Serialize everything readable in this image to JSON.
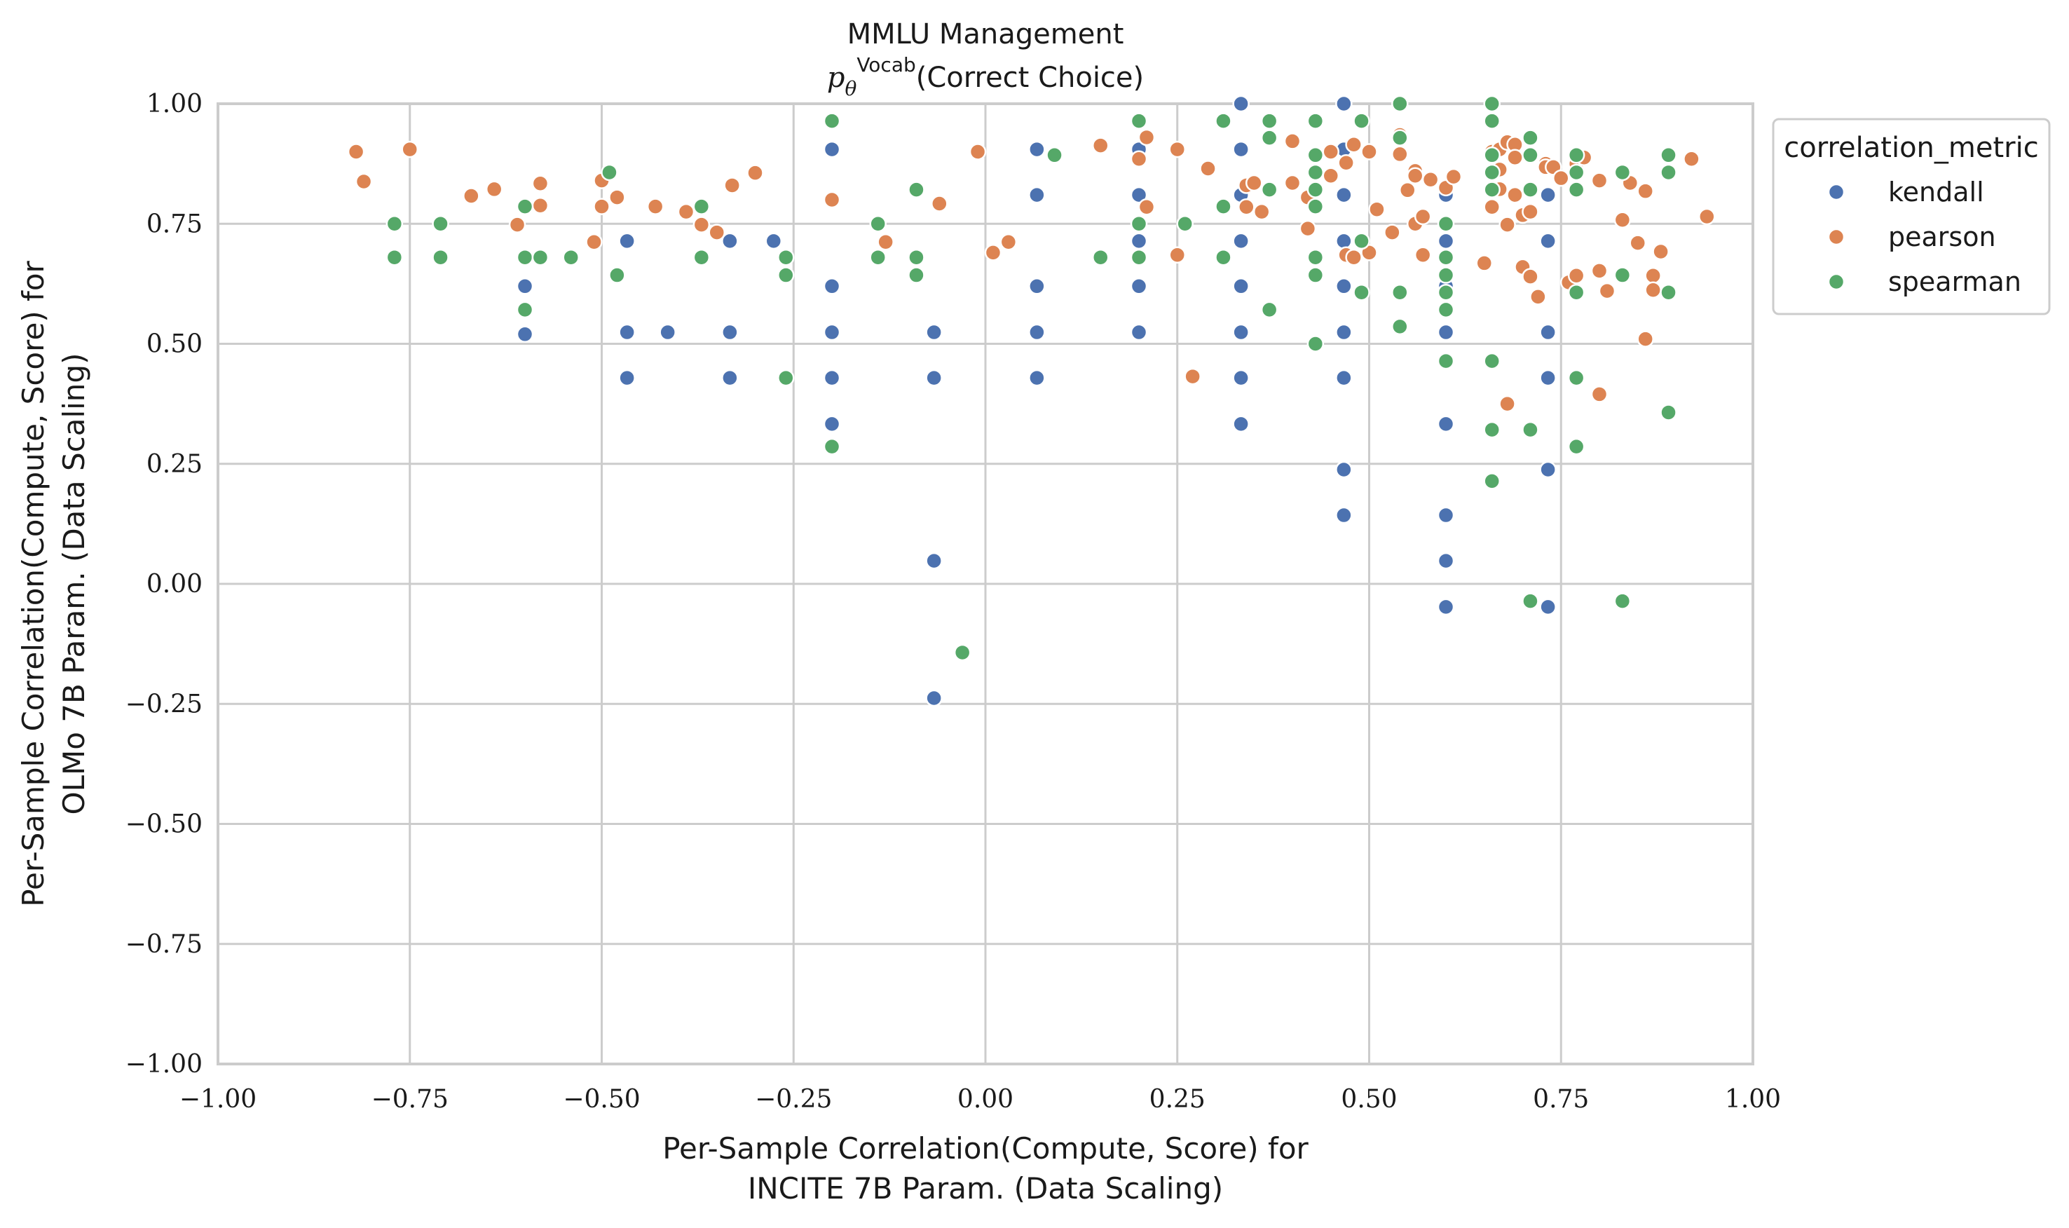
{
  "chart_data": {
    "type": "scatter",
    "title": "MMLU Management",
    "subtitle_math": "p",
    "subtitle_math_sub": "θ",
    "subtitle_sup": "Vocab",
    "subtitle_text": "(Correct Choice)",
    "xlabel_lines": [
      "Per-Sample Correlation(Compute, Score) for",
      "INCITE 7B Param. (Data Scaling)"
    ],
    "ylabel_lines": [
      "Per-Sample Correlation(Compute, Score) for",
      "OLMo 7B Param. (Data Scaling)"
    ],
    "xlim": [
      -1.0,
      1.0
    ],
    "ylim": [
      -1.0,
      1.0
    ],
    "xticks": [
      -1.0,
      -0.75,
      -0.5,
      -0.25,
      0.0,
      0.25,
      0.5,
      0.75,
      1.0
    ],
    "yticks": [
      -1.0,
      -0.75,
      -0.5,
      -0.25,
      0.0,
      0.25,
      0.5,
      0.75,
      1.0
    ],
    "xtick_labels": [
      "−1.00",
      "−0.75",
      "−0.50",
      "−0.25",
      "0.00",
      "0.25",
      "0.50",
      "0.75",
      "1.00"
    ],
    "ytick_labels": [
      "−1.00",
      "−0.75",
      "−0.50",
      "−0.25",
      "0.00",
      "0.25",
      "0.50",
      "0.75",
      "1.00"
    ],
    "grid": true,
    "legend": {
      "title": "correlation_metric",
      "placement": "outside-right-top"
    },
    "series": [
      {
        "name": "kendall",
        "color": "#4c72b0",
        "points": [
          [
            -0.6,
            0.62
          ],
          [
            -0.6,
            0.52
          ],
          [
            -0.467,
            0.714
          ],
          [
            -0.467,
            0.524
          ],
          [
            -0.467,
            0.429
          ],
          [
            -0.414,
            0.524
          ],
          [
            -0.333,
            0.714
          ],
          [
            -0.333,
            0.524
          ],
          [
            -0.333,
            0.429
          ],
          [
            -0.276,
            0.714
          ],
          [
            -0.2,
            0.905
          ],
          [
            -0.2,
            0.62
          ],
          [
            -0.2,
            0.524
          ],
          [
            -0.2,
            0.429
          ],
          [
            -0.2,
            0.333
          ],
          [
            -0.067,
            0.524
          ],
          [
            -0.067,
            0.429
          ],
          [
            -0.067,
            0.048
          ],
          [
            -0.067,
            -0.238
          ],
          [
            0.067,
            0.905
          ],
          [
            0.067,
            0.81
          ],
          [
            0.067,
            0.62
          ],
          [
            0.067,
            0.524
          ],
          [
            0.067,
            0.429
          ],
          [
            0.2,
            0.905
          ],
          [
            0.2,
            0.81
          ],
          [
            0.2,
            0.714
          ],
          [
            0.2,
            0.62
          ],
          [
            0.2,
            0.524
          ],
          [
            0.333,
            1.0
          ],
          [
            0.333,
            0.905
          ],
          [
            0.333,
            0.81
          ],
          [
            0.333,
            0.714
          ],
          [
            0.333,
            0.62
          ],
          [
            0.333,
            0.524
          ],
          [
            0.333,
            0.429
          ],
          [
            0.333,
            0.333
          ],
          [
            0.467,
            1.0
          ],
          [
            0.467,
            0.905
          ],
          [
            0.467,
            0.81
          ],
          [
            0.467,
            0.714
          ],
          [
            0.467,
            0.62
          ],
          [
            0.467,
            0.524
          ],
          [
            0.467,
            0.429
          ],
          [
            0.467,
            0.238
          ],
          [
            0.467,
            0.143
          ],
          [
            0.6,
            0.81
          ],
          [
            0.6,
            0.714
          ],
          [
            0.6,
            0.62
          ],
          [
            0.6,
            0.524
          ],
          [
            0.6,
            0.333
          ],
          [
            0.6,
            0.143
          ],
          [
            0.6,
            0.048
          ],
          [
            0.6,
            -0.048
          ],
          [
            0.733,
            0.81
          ],
          [
            0.733,
            0.714
          ],
          [
            0.733,
            0.524
          ],
          [
            0.733,
            0.429
          ],
          [
            0.733,
            0.238
          ],
          [
            0.733,
            -0.048
          ]
        ]
      },
      {
        "name": "pearson",
        "color": "#dd8452",
        "points": [
          [
            -0.82,
            0.9
          ],
          [
            -0.81,
            0.838
          ],
          [
            -0.75,
            0.905
          ],
          [
            -0.67,
            0.808
          ],
          [
            -0.64,
            0.822
          ],
          [
            -0.61,
            0.748
          ],
          [
            -0.58,
            0.834
          ],
          [
            -0.58,
            0.788
          ],
          [
            -0.51,
            0.712
          ],
          [
            -0.5,
            0.84
          ],
          [
            -0.5,
            0.786
          ],
          [
            -0.48,
            0.805
          ],
          [
            -0.43,
            0.786
          ],
          [
            -0.39,
            0.775
          ],
          [
            -0.37,
            0.748
          ],
          [
            -0.35,
            0.732
          ],
          [
            -0.33,
            0.83
          ],
          [
            -0.3,
            0.856
          ],
          [
            -0.2,
            0.8
          ],
          [
            -0.13,
            0.712
          ],
          [
            -0.06,
            0.792
          ],
          [
            -0.01,
            0.9
          ],
          [
            0.01,
            0.69
          ],
          [
            0.03,
            0.712
          ],
          [
            0.15,
            0.913
          ],
          [
            0.2,
            0.885
          ],
          [
            0.21,
            0.93
          ],
          [
            0.21,
            0.785
          ],
          [
            0.25,
            0.905
          ],
          [
            0.25,
            0.685
          ],
          [
            0.27,
            0.432
          ],
          [
            0.29,
            0.865
          ],
          [
            0.34,
            0.83
          ],
          [
            0.34,
            0.785
          ],
          [
            0.35,
            0.835
          ],
          [
            0.36,
            0.775
          ],
          [
            0.4,
            0.835
          ],
          [
            0.4,
            0.922
          ],
          [
            0.42,
            0.805
          ],
          [
            0.42,
            0.74
          ],
          [
            0.45,
            0.9
          ],
          [
            0.45,
            0.85
          ],
          [
            0.47,
            0.877
          ],
          [
            0.47,
            0.685
          ],
          [
            0.48,
            0.915
          ],
          [
            0.48,
            0.68
          ],
          [
            0.5,
            0.69
          ],
          [
            0.5,
            0.9
          ],
          [
            0.51,
            0.78
          ],
          [
            0.53,
            0.732
          ],
          [
            0.54,
            0.935
          ],
          [
            0.54,
            0.895
          ],
          [
            0.55,
            0.82
          ],
          [
            0.56,
            0.86
          ],
          [
            0.56,
            0.85
          ],
          [
            0.56,
            0.75
          ],
          [
            0.57,
            0.765
          ],
          [
            0.57,
            0.685
          ],
          [
            0.58,
            0.842
          ],
          [
            0.6,
            0.825
          ],
          [
            0.61,
            0.848
          ],
          [
            0.65,
            0.668
          ],
          [
            0.66,
            0.9
          ],
          [
            0.66,
            0.785
          ],
          [
            0.67,
            0.905
          ],
          [
            0.67,
            0.863
          ],
          [
            0.67,
            0.822
          ],
          [
            0.68,
            0.92
          ],
          [
            0.68,
            0.748
          ],
          [
            0.68,
            0.375
          ],
          [
            0.69,
            0.81
          ],
          [
            0.69,
            0.915
          ],
          [
            0.69,
            0.888
          ],
          [
            0.7,
            0.768
          ],
          [
            0.7,
            0.66
          ],
          [
            0.71,
            0.775
          ],
          [
            0.71,
            0.64
          ],
          [
            0.72,
            0.598
          ],
          [
            0.73,
            0.875
          ],
          [
            0.73,
            0.868
          ],
          [
            0.74,
            0.868
          ],
          [
            0.75,
            0.845
          ],
          [
            0.76,
            0.628
          ],
          [
            0.77,
            0.875
          ],
          [
            0.77,
            0.642
          ],
          [
            0.78,
            0.888
          ],
          [
            0.8,
            0.84
          ],
          [
            0.8,
            0.652
          ],
          [
            0.8,
            0.395
          ],
          [
            0.81,
            0.61
          ],
          [
            0.83,
            0.758
          ],
          [
            0.84,
            0.835
          ],
          [
            0.85,
            0.71
          ],
          [
            0.86,
            0.818
          ],
          [
            0.86,
            0.51
          ],
          [
            0.87,
            0.642
          ],
          [
            0.87,
            0.612
          ],
          [
            0.88,
            0.692
          ],
          [
            0.92,
            0.885
          ],
          [
            0.94,
            0.765
          ]
        ]
      },
      {
        "name": "spearman",
        "color": "#55a868",
        "points": [
          [
            -0.77,
            0.75
          ],
          [
            -0.77,
            0.68
          ],
          [
            -0.71,
            0.75
          ],
          [
            -0.71,
            0.68
          ],
          [
            -0.6,
            0.786
          ],
          [
            -0.6,
            0.68
          ],
          [
            -0.6,
            0.571
          ],
          [
            -0.58,
            0.68
          ],
          [
            -0.54,
            0.68
          ],
          [
            -0.49,
            0.857
          ],
          [
            -0.48,
            0.643
          ],
          [
            -0.37,
            0.786
          ],
          [
            -0.37,
            0.68
          ],
          [
            -0.26,
            0.68
          ],
          [
            -0.26,
            0.643
          ],
          [
            -0.26,
            0.429
          ],
          [
            -0.2,
            0.964
          ],
          [
            -0.2,
            0.286
          ],
          [
            -0.14,
            0.75
          ],
          [
            -0.14,
            0.68
          ],
          [
            -0.09,
            0.821
          ],
          [
            -0.09,
            0.68
          ],
          [
            -0.09,
            0.643
          ],
          [
            -0.03,
            -0.143
          ],
          [
            0.09,
            0.893
          ],
          [
            0.15,
            0.68
          ],
          [
            0.2,
            0.964
          ],
          [
            0.2,
            0.75
          ],
          [
            0.2,
            0.68
          ],
          [
            0.26,
            0.75
          ],
          [
            0.31,
            0.964
          ],
          [
            0.31,
            0.786
          ],
          [
            0.31,
            0.68
          ],
          [
            0.37,
            0.964
          ],
          [
            0.37,
            0.929
          ],
          [
            0.37,
            0.821
          ],
          [
            0.37,
            0.571
          ],
          [
            0.43,
            0.964
          ],
          [
            0.43,
            0.893
          ],
          [
            0.43,
            0.857
          ],
          [
            0.43,
            0.821
          ],
          [
            0.43,
            0.786
          ],
          [
            0.43,
            0.68
          ],
          [
            0.43,
            0.643
          ],
          [
            0.43,
            0.5
          ],
          [
            0.49,
            0.964
          ],
          [
            0.49,
            0.714
          ],
          [
            0.49,
            0.607
          ],
          [
            0.54,
            1.0
          ],
          [
            0.54,
            0.929
          ],
          [
            0.54,
            0.607
          ],
          [
            0.54,
            0.536
          ],
          [
            0.6,
            0.75
          ],
          [
            0.6,
            0.68
          ],
          [
            0.6,
            0.643
          ],
          [
            0.6,
            0.607
          ],
          [
            0.6,
            0.571
          ],
          [
            0.6,
            0.464
          ],
          [
            0.66,
            1.0
          ],
          [
            0.66,
            0.964
          ],
          [
            0.66,
            0.893
          ],
          [
            0.66,
            0.857
          ],
          [
            0.66,
            0.821
          ],
          [
            0.66,
            0.464
          ],
          [
            0.66,
            0.321
          ],
          [
            0.66,
            0.214
          ],
          [
            0.71,
            0.929
          ],
          [
            0.71,
            0.893
          ],
          [
            0.71,
            0.821
          ],
          [
            0.71,
            0.321
          ],
          [
            0.71,
            -0.036
          ],
          [
            0.77,
            0.893
          ],
          [
            0.77,
            0.857
          ],
          [
            0.77,
            0.821
          ],
          [
            0.77,
            0.607
          ],
          [
            0.77,
            0.429
          ],
          [
            0.77,
            0.286
          ],
          [
            0.83,
            0.857
          ],
          [
            0.83,
            0.643
          ],
          [
            0.83,
            -0.036
          ],
          [
            0.89,
            0.893
          ],
          [
            0.89,
            0.857
          ],
          [
            0.89,
            0.607
          ],
          [
            0.89,
            0.357
          ]
        ]
      }
    ]
  }
}
